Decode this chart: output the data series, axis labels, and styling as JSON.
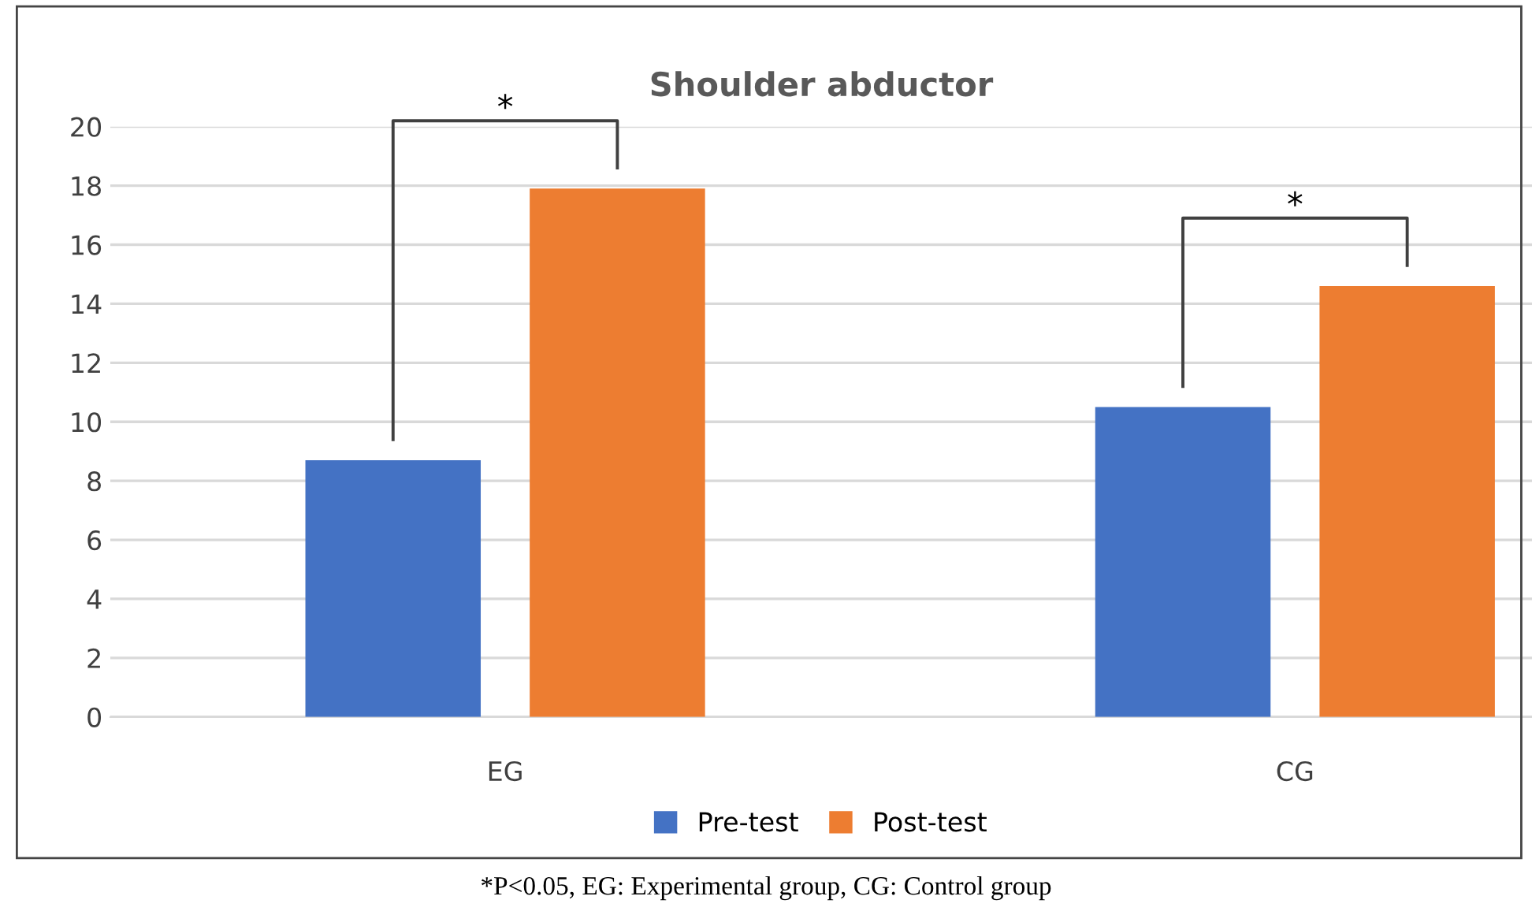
{
  "chart_data": {
    "type": "bar",
    "title": "Shoulder abductor",
    "categories": [
      "EG",
      "CG"
    ],
    "series": [
      {
        "name": "Pre-test",
        "color": "#4472c4",
        "values": [
          8.7,
          10.5
        ]
      },
      {
        "name": "Post-test",
        "color": "#ed7d31",
        "values": [
          17.9,
          14.6
        ]
      }
    ],
    "ylim": [
      0,
      20
    ],
    "yticks": [
      0,
      2,
      4,
      6,
      8,
      10,
      12,
      14,
      16,
      18,
      20
    ],
    "grid": "y",
    "legend": "bottom",
    "annotations": [
      "*",
      "*",
      "*P<0.05, EG: Experimental group, CG: Control group"
    ]
  }
}
